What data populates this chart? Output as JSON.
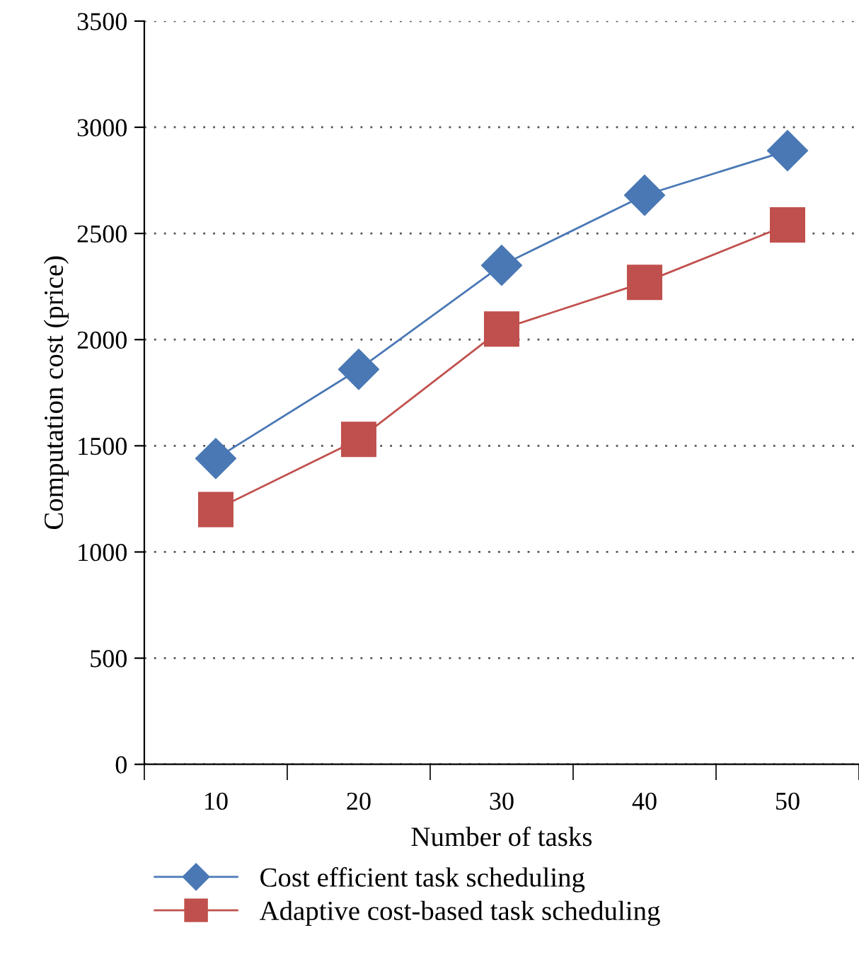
{
  "chart_data": {
    "type": "line",
    "xlabel": "Number of tasks",
    "ylabel": "Computation cost (price)",
    "categories": [
      "10",
      "20",
      "30",
      "40",
      "50"
    ],
    "series": [
      {
        "name": "Cost efficient task scheduling",
        "color": "#4a78b5",
        "marker": "diamond",
        "values": [
          1440,
          1860,
          2350,
          2680,
          2890
        ]
      },
      {
        "name": "Adaptive cost-based task scheduling",
        "color": "#c0504d",
        "marker": "square",
        "values": [
          1200,
          1530,
          2050,
          2270,
          2540
        ]
      }
    ],
    "ylim": [
      0,
      3500
    ],
    "yticks": [
      0,
      500,
      1000,
      1500,
      2000,
      2500,
      3000,
      3500
    ],
    "grid": "y",
    "legend": "bottom left",
    "line_style": "solid"
  }
}
